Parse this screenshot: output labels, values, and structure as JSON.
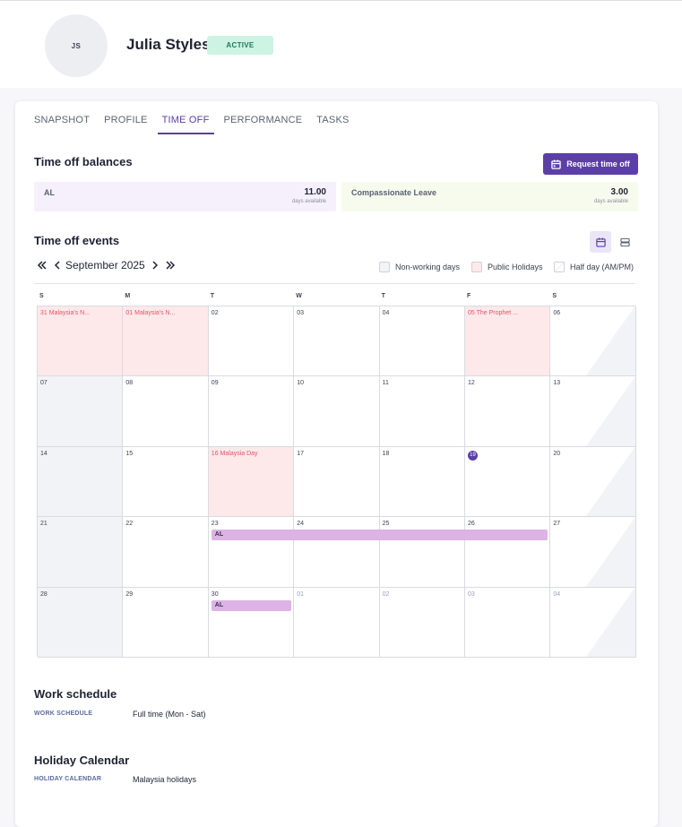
{
  "header": {
    "initials": "JS",
    "name": "Julia Styles",
    "status": "ACTIVE"
  },
  "tabs": [
    "SNAPSHOT",
    "PROFILE",
    "TIME OFF",
    "PERFORMANCE",
    "TASKS"
  ],
  "active_tab": "TIME OFF",
  "balances": {
    "title": "Time off balances",
    "request_button": "Request time off",
    "items": [
      {
        "label": "AL",
        "value": "11.00",
        "unit": "days available",
        "color": "#f5f0fc"
      },
      {
        "label": "Compassionate Leave",
        "value": "3.00",
        "unit": "days available",
        "color": "#f6fbee"
      }
    ]
  },
  "events": {
    "title": "Time off events",
    "month": "September 2025",
    "legend": [
      "Non-working days",
      "Public Holidays",
      "Half day (AM/PM)"
    ],
    "weekdays": [
      "S",
      "M",
      "T",
      "W",
      "T",
      "F",
      "S"
    ],
    "weeks": [
      [
        {
          "d": "31",
          "t": "Malaysia's N...",
          "k": "holiday"
        },
        {
          "d": "01",
          "t": "Malaysia's N...",
          "k": "holiday"
        },
        {
          "d": "02",
          "k": "normal"
        },
        {
          "d": "03",
          "k": "normal"
        },
        {
          "d": "04",
          "k": "normal"
        },
        {
          "d": "05",
          "t": "The Prophet ...",
          "k": "holiday"
        },
        {
          "d": "06",
          "k": "half"
        }
      ],
      [
        {
          "d": "07",
          "k": "weekend"
        },
        {
          "d": "08",
          "k": "normal"
        },
        {
          "d": "09",
          "k": "normal"
        },
        {
          "d": "10",
          "k": "normal"
        },
        {
          "d": "11",
          "k": "normal"
        },
        {
          "d": "12",
          "k": "normal"
        },
        {
          "d": "13",
          "k": "half"
        }
      ],
      [
        {
          "d": "14",
          "k": "weekend"
        },
        {
          "d": "15",
          "k": "normal"
        },
        {
          "d": "16",
          "t": "Malaysia Day",
          "k": "holiday"
        },
        {
          "d": "17",
          "k": "normal"
        },
        {
          "d": "18",
          "k": "normal"
        },
        {
          "d": "19",
          "k": "today"
        },
        {
          "d": "20",
          "k": "half"
        }
      ],
      [
        {
          "d": "21",
          "k": "weekend"
        },
        {
          "d": "22",
          "k": "normal"
        },
        {
          "d": "23",
          "k": "normal"
        },
        {
          "d": "24",
          "k": "normal"
        },
        {
          "d": "25",
          "k": "normal"
        },
        {
          "d": "26",
          "k": "normal"
        },
        {
          "d": "27",
          "k": "half"
        }
      ],
      [
        {
          "d": "28",
          "k": "weekend"
        },
        {
          "d": "29",
          "k": "normal"
        },
        {
          "d": "30",
          "k": "normal"
        },
        {
          "d": "01",
          "k": "other"
        },
        {
          "d": "02",
          "k": "other"
        },
        {
          "d": "03",
          "k": "other"
        },
        {
          "d": "04",
          "k": "otherhalf"
        }
      ]
    ],
    "bars": [
      {
        "label": "AL",
        "week": 3,
        "start_col": 2,
        "end_col": 5
      },
      {
        "label": "AL",
        "week": 4,
        "start_col": 2,
        "end_col": 2
      }
    ]
  },
  "work_schedule": {
    "title": "Work schedule",
    "label": "WORK SCHEDULE",
    "value": "Full time (Mon - Sat)"
  },
  "holiday_calendar": {
    "title": "Holiday Calendar",
    "label": "HOLIDAY CALENDAR",
    "value": "Malaysia holidays"
  },
  "colors": {
    "accent": "#5b3fa6",
    "holiday": "#fde8ea",
    "leave": "#dcb3e4",
    "status": "#cdf3e4"
  }
}
